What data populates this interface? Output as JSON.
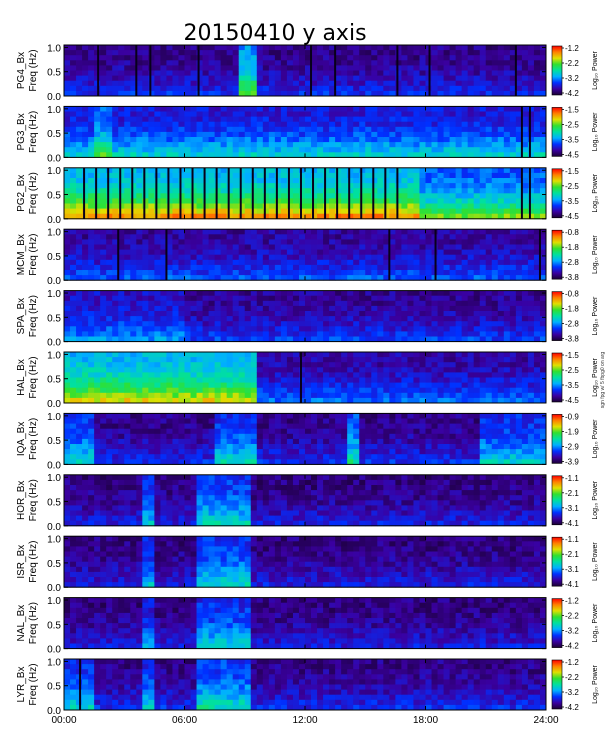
{
  "chart_data": {
    "type": "heatmap",
    "title": "20150410 y axis",
    "x_ticks": [
      "00:00",
      "06:00",
      "12:00",
      "18:00",
      "24:00"
    ],
    "xlim_hours": [
      0,
      24
    ],
    "ylim_hz": [
      0,
      1.05
    ],
    "y_ticks": [
      "0.0",
      "0.5",
      "1.0"
    ],
    "colorbar_label": "Log₁₀ Power",
    "colormap": [
      "#1a0033",
      "#3a00a0",
      "#0030ff",
      "#00b0ff",
      "#00e0a0",
      "#30e030",
      "#e0e000",
      "#ff8000",
      "#ff0000"
    ],
    "side_note": "sgn fpg w/ 5 fbpg0 on arg",
    "panels": [
      {
        "name": "PG4",
        "ylabel_top": "PG4_Bx",
        "ylabel_bot": "Freq (Hz)",
        "cbar": [
          "-1.2",
          "-2.2",
          "-3.2",
          "-4.2"
        ],
        "level": 0.18,
        "bands": [
          [
            8.6,
            9.6,
            0.35
          ]
        ],
        "gaps": [
          1.7,
          3.6,
          4.3,
          6.7,
          12.3,
          13.5,
          16.6,
          18.2,
          22.5
        ]
      },
      {
        "name": "PG3",
        "ylabel_top": "PG3_Bx",
        "ylabel_bot": "Freq (Hz)",
        "cbar": [
          "-1.5",
          "-2.5",
          "-3.5",
          "-4.5"
        ],
        "level": 0.35,
        "bands": [
          [
            1.5,
            2.5,
            0.15
          ]
        ],
        "gaps": [
          22.8,
          23.2
        ]
      },
      {
        "name": "PG2",
        "ylabel_top": "PG2_Bx",
        "ylabel_bot": "Freq (Hz)",
        "cbar": [
          "-1.5",
          "-2.5",
          "-3.5",
          "-4.5"
        ],
        "level": 0.52,
        "bands": [
          [
            0,
            17.6,
            0.16
          ]
        ],
        "gaps": [
          1.0,
          1.6,
          2.2,
          2.8,
          3.4,
          4.0,
          4.6,
          5.2,
          5.8,
          6.4,
          7.0,
          7.6,
          8.2,
          8.8,
          9.4,
          10.0,
          10.6,
          11.2,
          11.8,
          12.4,
          13.0,
          13.6,
          14.2,
          14.8,
          15.4,
          16.0,
          16.6,
          22.8,
          23.2
        ]
      },
      {
        "name": "MCM",
        "ylabel_top": "MCM_Bx",
        "ylabel_bot": "Freq (Hz)",
        "cbar": [
          "-0.8",
          "-1.8",
          "-2.8",
          "-3.8"
        ],
        "level": 0.22,
        "bands": [],
        "gaps": [
          2.7,
          5.1,
          16.2,
          18.5,
          23.7
        ]
      },
      {
        "name": "SPA",
        "ylabel_top": "SPA_Bx",
        "ylabel_bot": "Freq (Hz)",
        "cbar": [
          "-0.8",
          "-1.8",
          "-2.8",
          "-3.8"
        ],
        "level": 0.2,
        "bands": [
          [
            0,
            6,
            0.08
          ]
        ],
        "gaps": []
      },
      {
        "name": "HAL",
        "ylabel_top": "HAL_Bx",
        "ylabel_bot": "Freq (Hz)",
        "cbar": [
          "-1.5",
          "-2.5",
          "-3.5",
          "-4.5"
        ],
        "level": 0.24,
        "bands": [
          [
            0,
            9.6,
            0.38
          ]
        ],
        "gaps": [
          11.8
        ]
      },
      {
        "name": "IQA",
        "ylabel_top": "IQA_Bx",
        "ylabel_bot": "Freq (Hz)",
        "cbar": [
          "-0.9",
          "-1.9",
          "-2.9",
          "-3.9"
        ],
        "level": 0.18,
        "bands": [
          [
            0,
            1.6,
            0.2
          ],
          [
            7.6,
            9.6,
            0.2
          ],
          [
            14.2,
            14.6,
            0.25
          ],
          [
            20.6,
            24,
            0.18
          ]
        ],
        "gaps": []
      },
      {
        "name": "HOR",
        "ylabel_top": "HOR_Bx",
        "ylabel_bot": "Freq (Hz)",
        "cbar": [
          "-1.1",
          "-2.1",
          "-3.1",
          "-4.1"
        ],
        "level": 0.16,
        "bands": [
          [
            4,
            4.6,
            0.18
          ],
          [
            6.5,
            9.2,
            0.22
          ]
        ],
        "gaps": []
      },
      {
        "name": "ISR",
        "ylabel_top": "ISR_Bx",
        "ylabel_bot": "Freq (Hz)",
        "cbar": [
          "-1.1",
          "-2.1",
          "-3.1",
          "-4.1"
        ],
        "level": 0.16,
        "bands": [
          [
            4,
            4.6,
            0.18
          ],
          [
            6.5,
            9.2,
            0.22
          ]
        ],
        "gaps": []
      },
      {
        "name": "NAL",
        "ylabel_top": "NAL_Bx",
        "ylabel_bot": "Freq (Hz)",
        "cbar": [
          "-1.2",
          "-2.2",
          "-3.2",
          "-4.2"
        ],
        "level": 0.16,
        "bands": [
          [
            4,
            4.6,
            0.15
          ],
          [
            6.5,
            9.2,
            0.2
          ]
        ],
        "gaps": []
      },
      {
        "name": "LYR",
        "ylabel_top": "LYR_Bx",
        "ylabel_bot": "Freq (Hz)",
        "cbar": [
          "-1.2",
          "-2.2",
          "-3.2",
          "-4.2"
        ],
        "level": 0.18,
        "bands": [
          [
            0,
            1.5,
            0.18
          ],
          [
            4,
            4.6,
            0.18
          ],
          [
            6.5,
            9.2,
            0.22
          ]
        ],
        "gaps": [
          0.8
        ]
      }
    ]
  }
}
